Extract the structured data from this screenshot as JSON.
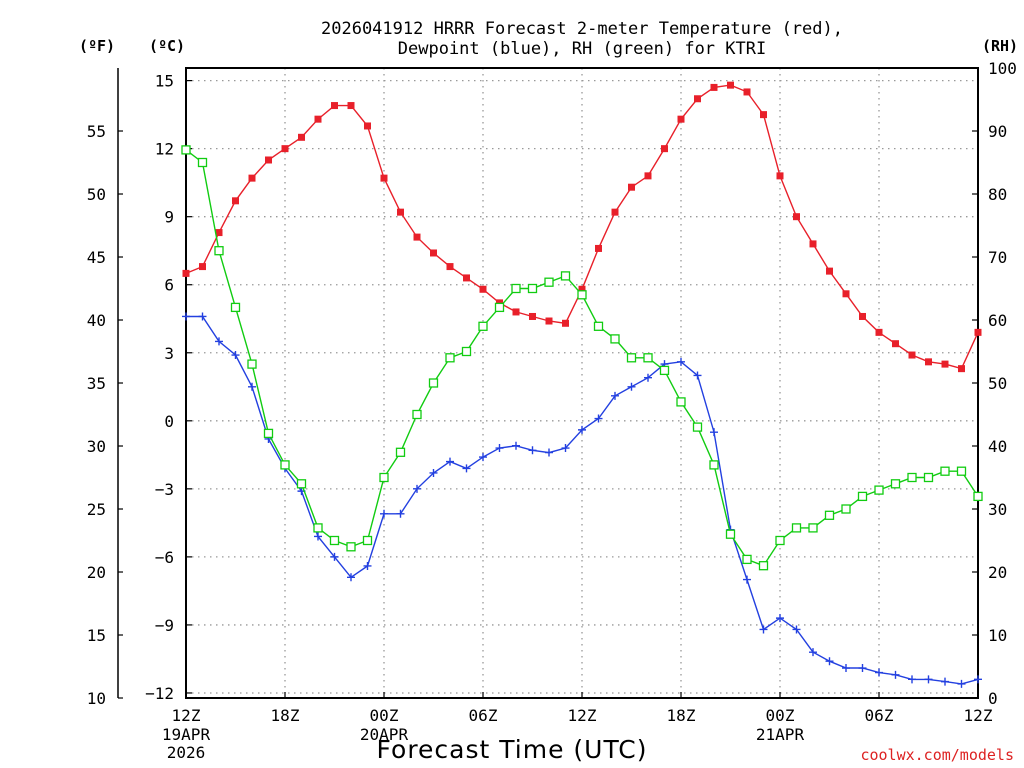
{
  "chart_data": {
    "type": "line",
    "title_line1": "2026041912 HRRR Forecast 2-meter Temperature (red),",
    "title_line2": "Dewpoint (blue), RH (green) for KTRI",
    "xlabel": "Forecast Time (UTC)",
    "credit": "coolwx.com/models",
    "unit_f": "(ºF)",
    "unit_c": "(ºC)",
    "unit_rh": "(RH)",
    "x_range": [
      0,
      48
    ],
    "ylim_c": [
      -12.222,
      15.556
    ],
    "ylim_rh": [
      0,
      100
    ],
    "grid": true,
    "x_ticks": [
      {
        "hour": 0,
        "label": "12Z",
        "sub1": "19APR",
        "sub2": "2026"
      },
      {
        "hour": 6,
        "label": "18Z",
        "sub1": "",
        "sub2": ""
      },
      {
        "hour": 12,
        "label": "00Z",
        "sub1": "20APR",
        "sub2": ""
      },
      {
        "hour": 18,
        "label": "06Z",
        "sub1": "",
        "sub2": ""
      },
      {
        "hour": 24,
        "label": "12Z",
        "sub1": "",
        "sub2": ""
      },
      {
        "hour": 30,
        "label": "18Z",
        "sub1": "",
        "sub2": ""
      },
      {
        "hour": 36,
        "label": "00Z",
        "sub1": "21APR",
        "sub2": ""
      },
      {
        "hour": 42,
        "label": "06Z",
        "sub1": "",
        "sub2": ""
      },
      {
        "hour": 48,
        "label": "12Z",
        "sub1": "",
        "sub2": ""
      }
    ],
    "yticks_c": [
      {
        "v": 15,
        "label": "15"
      },
      {
        "v": 12,
        "label": "12"
      },
      {
        "v": 9,
        "label": "9"
      },
      {
        "v": 6,
        "label": "6"
      },
      {
        "v": 3,
        "label": "3"
      },
      {
        "v": 0,
        "label": "0"
      },
      {
        "v": -3,
        "label": "−3"
      },
      {
        "v": -6,
        "label": "−6"
      },
      {
        "v": -9,
        "label": "−9"
      },
      {
        "v": -12,
        "label": "−12"
      }
    ],
    "yticks_f": [
      {
        "v": 55,
        "label": "55"
      },
      {
        "v": 50,
        "label": "50"
      },
      {
        "v": 45,
        "label": "45"
      },
      {
        "v": 40,
        "label": "40"
      },
      {
        "v": 35,
        "label": "35"
      },
      {
        "v": 30,
        "label": "30"
      },
      {
        "v": 25,
        "label": "25"
      },
      {
        "v": 20,
        "label": "20"
      },
      {
        "v": 15,
        "label": "15"
      },
      {
        "v": 10,
        "label": "10"
      }
    ],
    "yticks_rh": [
      {
        "v": 100,
        "label": "100"
      },
      {
        "v": 90,
        "label": "90"
      },
      {
        "v": 80,
        "label": "80"
      },
      {
        "v": 70,
        "label": "70"
      },
      {
        "v": 60,
        "label": "60"
      },
      {
        "v": 50,
        "label": "50"
      },
      {
        "v": 40,
        "label": "40"
      },
      {
        "v": 30,
        "label": "30"
      },
      {
        "v": 20,
        "label": "20"
      },
      {
        "v": 10,
        "label": "10"
      },
      {
        "v": 0,
        "label": "0"
      }
    ],
    "series": [
      {
        "name": "Temperature (°C)",
        "color": "#e8202a",
        "marker": "square-filled",
        "axis": "c",
        "values": [
          6.5,
          6.8,
          8.3,
          9.7,
          10.7,
          11.5,
          12.0,
          12.5,
          13.3,
          13.9,
          13.9,
          13.0,
          10.7,
          9.2,
          8.1,
          7.4,
          6.8,
          6.3,
          5.8,
          5.2,
          4.8,
          4.6,
          4.4,
          4.3,
          5.8,
          7.6,
          9.2,
          10.3,
          10.8,
          12.0,
          13.3,
          14.2,
          14.7,
          14.8,
          14.5,
          13.5,
          10.8,
          9.0,
          7.8,
          6.6,
          5.6,
          4.6,
          3.9,
          3.4,
          2.9,
          2.6,
          2.5,
          2.3,
          3.9
        ]
      },
      {
        "name": "Dewpoint (°C)",
        "color": "#2340e0",
        "marker": "plus",
        "axis": "c",
        "values": [
          4.6,
          4.6,
          3.5,
          2.9,
          1.5,
          -0.8,
          -2.1,
          -3.1,
          -5.1,
          -6.0,
          -6.9,
          -6.4,
          -4.1,
          -4.1,
          -3.0,
          -2.3,
          -1.8,
          -2.1,
          -1.6,
          -1.2,
          -1.1,
          -1.3,
          -1.4,
          -1.2,
          -0.4,
          0.1,
          1.1,
          1.5,
          1.9,
          2.5,
          2.6,
          2.0,
          -0.5,
          -4.8,
          -7.0,
          -9.2,
          -8.7,
          -9.2,
          -10.2,
          -10.6,
          -10.9,
          -10.9,
          -11.1,
          -11.2,
          -11.4,
          -11.4,
          -11.5,
          -11.6,
          -11.4
        ]
      },
      {
        "name": "RH (%)",
        "color": "#11cc11",
        "marker": "square-open",
        "axis": "rh",
        "values": [
          87,
          85,
          71,
          62,
          53,
          42,
          37,
          34,
          27,
          25,
          24,
          25,
          35,
          39,
          45,
          50,
          54,
          55,
          59,
          62,
          65,
          65,
          66,
          67,
          64,
          59,
          57,
          54,
          54,
          52,
          47,
          43,
          37,
          26,
          22,
          21,
          25,
          27,
          27,
          29,
          30,
          32,
          33,
          34,
          35,
          35,
          36,
          36,
          32
        ]
      }
    ]
  }
}
